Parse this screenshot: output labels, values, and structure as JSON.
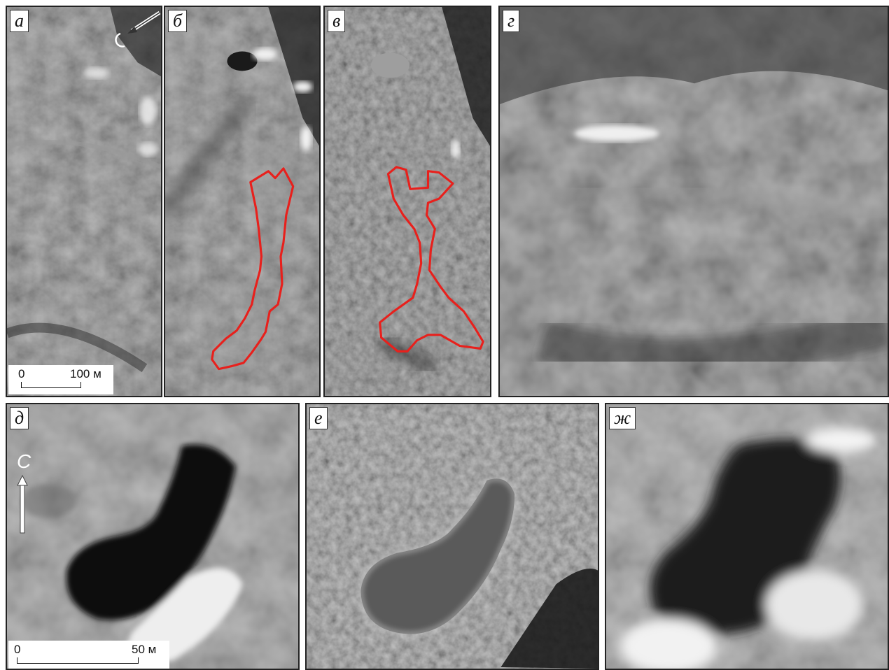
{
  "panels": [
    {
      "label": "а",
      "scale": {
        "zero": "0",
        "length": "100 м"
      },
      "north": "С"
    },
    {
      "label": "б"
    },
    {
      "label": "в"
    },
    {
      "label": "г"
    },
    {
      "label": "д",
      "scale": {
        "zero": "0",
        "length": "50 м"
      },
      "north": "С"
    },
    {
      "label": "е"
    },
    {
      "label": "ж"
    }
  ],
  "colors": {
    "outline": "#e8201c",
    "frame": "#222222"
  }
}
